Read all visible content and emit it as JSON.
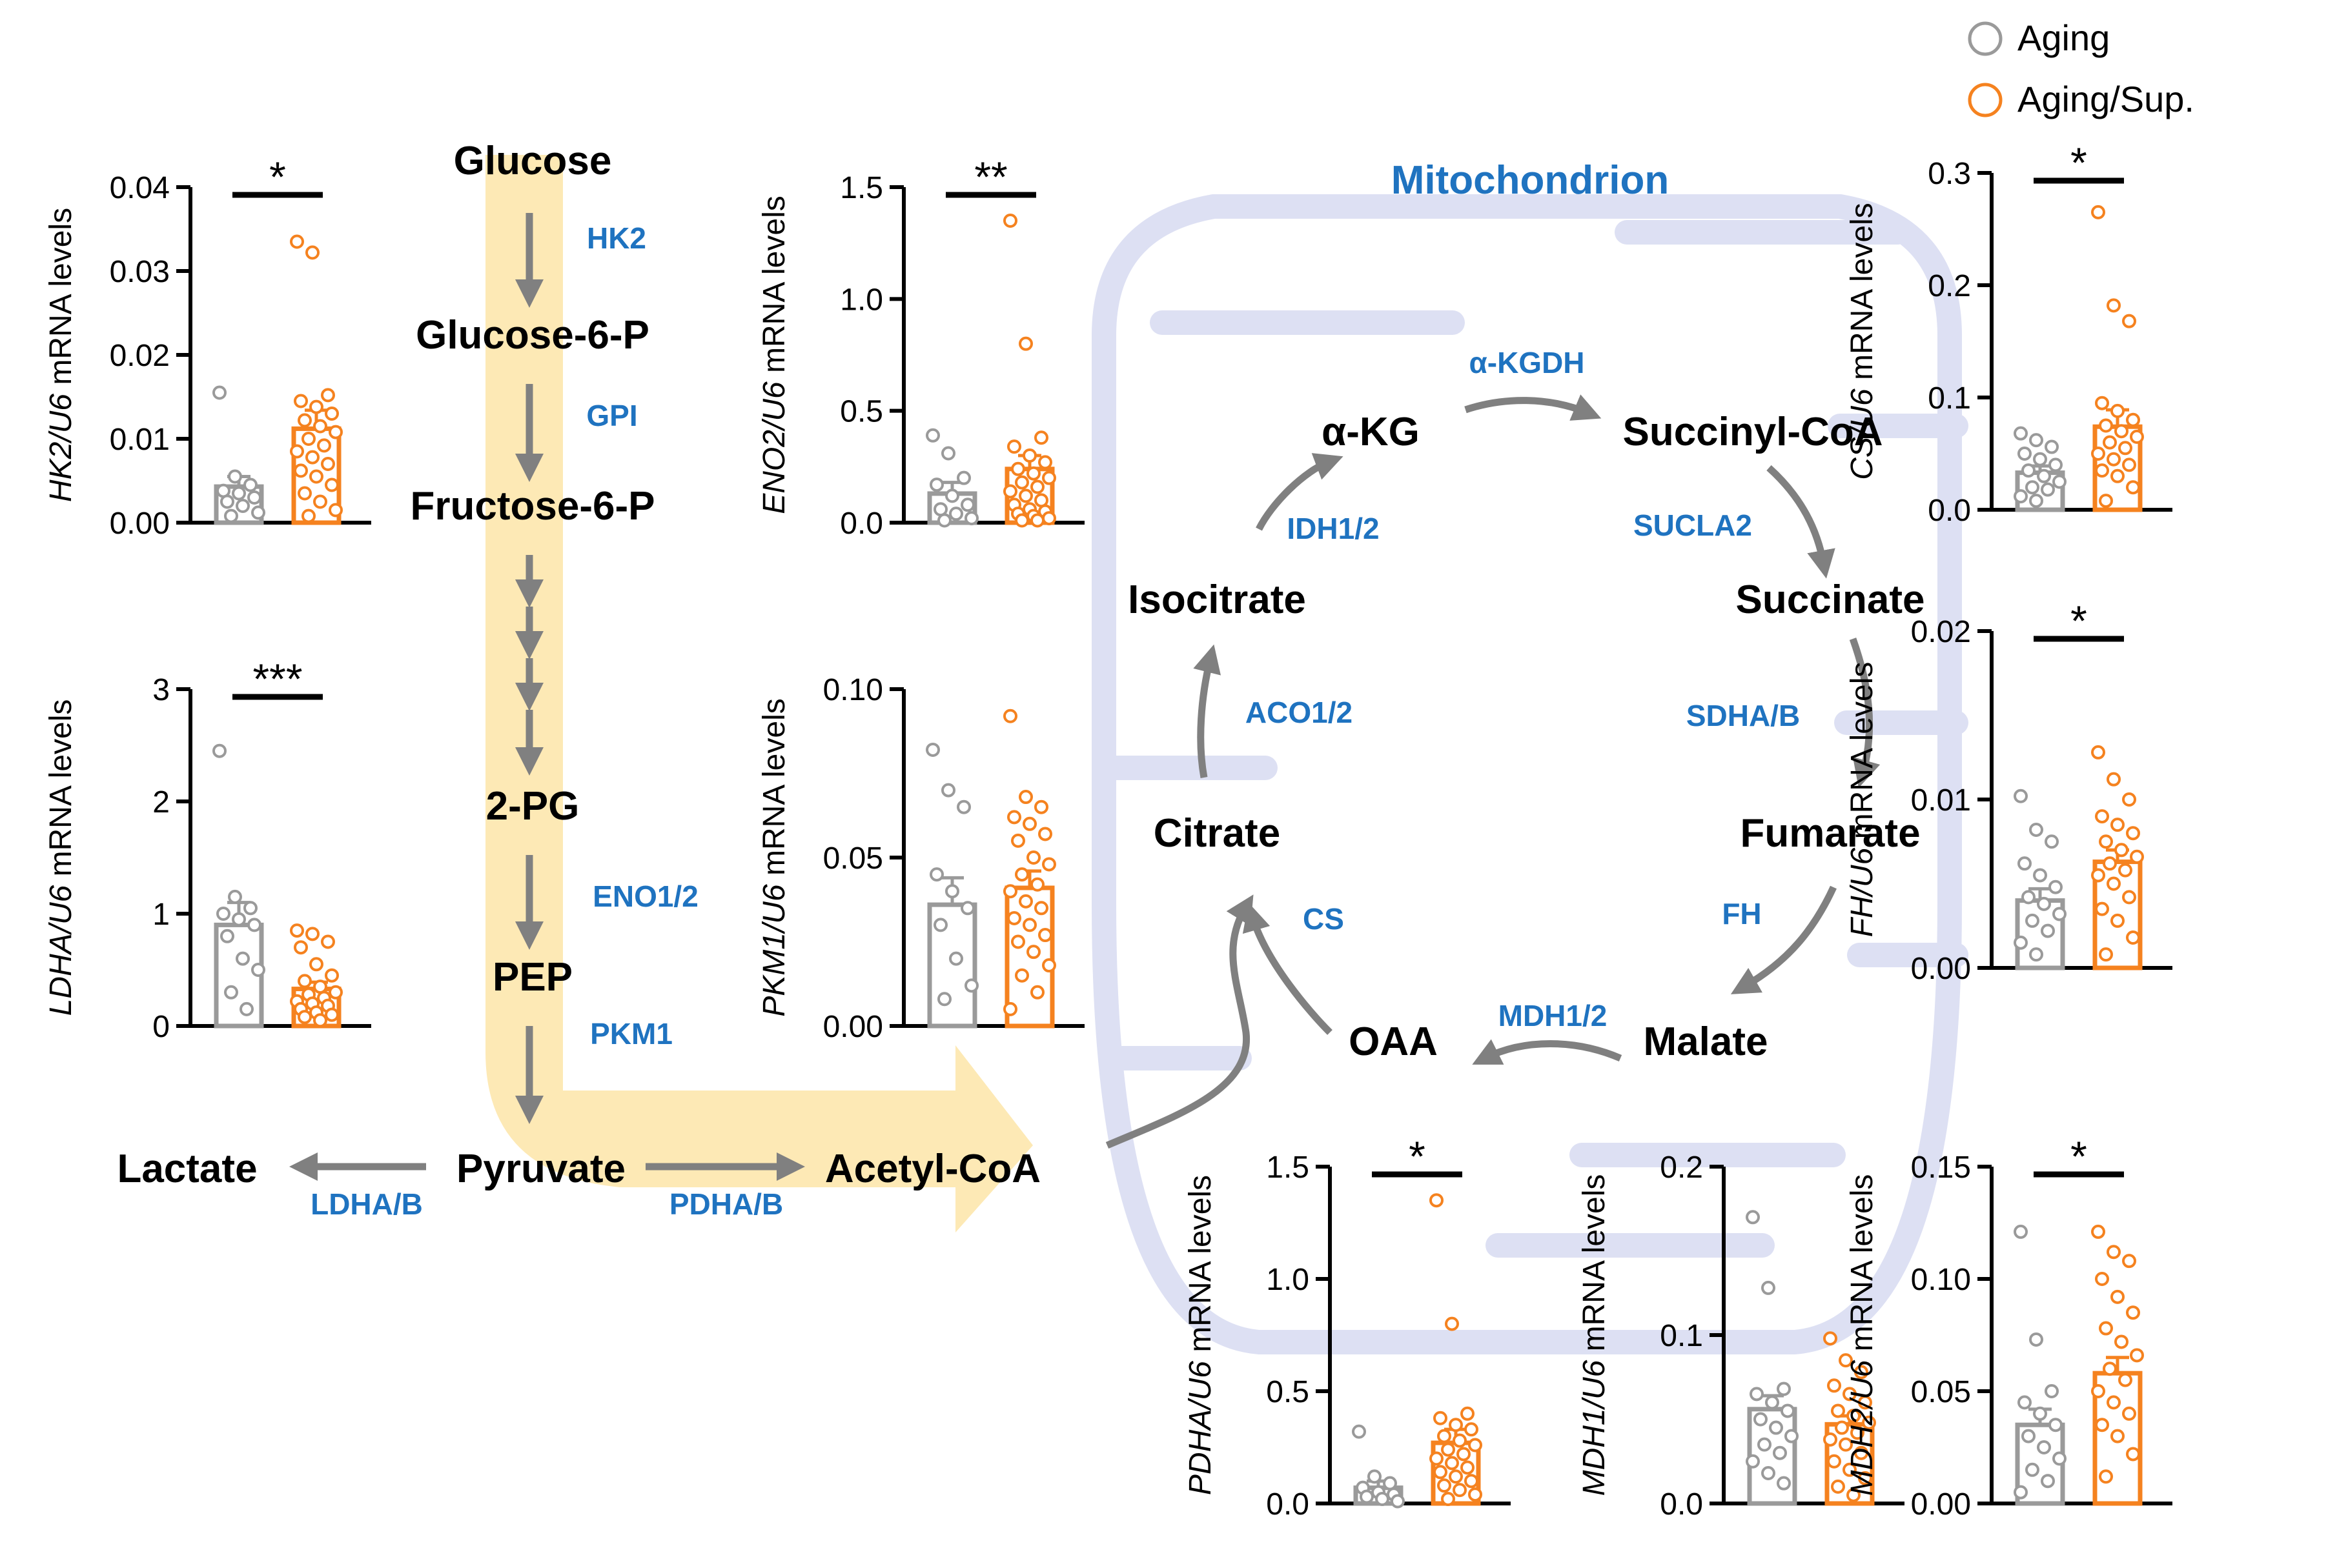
{
  "legend": {
    "items": [
      {
        "label": "Aging",
        "color": "#9a9a9a"
      },
      {
        "label": "Aging/Sup.",
        "color": "#f5821f"
      }
    ]
  },
  "colors": {
    "aging": "#9a9a9a",
    "supplemented": "#f5821f",
    "enzyme": "#1f73c0",
    "arrow": "#808080",
    "glycolysis_band": "#fde9b5",
    "mitochondrion": "#dde0f3"
  },
  "pathway": {
    "mitochondrion_label": "Mitochondrion",
    "glycolysis": {
      "glucose": "Glucose",
      "hk2": "HK2",
      "g6p": "Glucose-6-P",
      "gpi": "GPI",
      "f6p": "Fructose-6-P",
      "pg2": "2-PG",
      "eno": "ENO1/2",
      "pep": "PEP",
      "pkm": "PKM1",
      "pyruvate": "Pyruvate",
      "lactate": "Lactate",
      "ldh": "LDHA/B",
      "pdh": "PDHA/B",
      "acetylcoa": "Acetyl-CoA"
    },
    "tca": {
      "akg": "α-KG",
      "akgdh": "α-KGDH",
      "succoa": "Succinyl-CoA",
      "sucla": "SUCLA2",
      "succinate": "Succinate",
      "sdh": "SDHA/B",
      "fumarate": "Fumarate",
      "fh": "FH",
      "malate": "Malate",
      "mdh": "MDH1/2",
      "oaa": "OAA",
      "cs": "CS",
      "citrate": "Citrate",
      "aco": "ACO1/2",
      "isocitrate": "Isocitrate",
      "idh": "IDH1/2"
    }
  },
  "chart_data": [
    {
      "id": "hk2",
      "type": "bar",
      "gene": "HK2",
      "ylabel_suffix": "/U6 mRNA levels",
      "ylim": [
        0,
        0.04
      ],
      "ticks": [
        0,
        0.01,
        0.02,
        0.03,
        0.04
      ],
      "tick_labels": [
        "0.00",
        "0.01",
        "0.02",
        "0.03",
        "0.04"
      ],
      "significance": "*",
      "series": [
        {
          "name": "Aging",
          "mean": 0.0043,
          "sem": 0.0012,
          "points": [
            0.0155,
            0.0055,
            0.0045,
            0.0038,
            0.0035,
            0.003,
            0.0025,
            0.002,
            0.0012,
            0.0008
          ]
        },
        {
          "name": "Aging/Sup.",
          "mean": 0.0112,
          "sem": 0.0022,
          "points": [
            0.0335,
            0.0322,
            0.0152,
            0.0145,
            0.0138,
            0.013,
            0.0122,
            0.0115,
            0.0108,
            0.01,
            0.0092,
            0.0085,
            0.0078,
            0.007,
            0.0062,
            0.0055,
            0.0045,
            0.0035,
            0.0025,
            0.0015,
            0.0008
          ]
        }
      ]
    },
    {
      "id": "eno2",
      "type": "bar",
      "gene": "ENO2",
      "ylabel_suffix": "/U6 mRNA levels",
      "ylim": [
        0,
        1.5
      ],
      "ticks": [
        0,
        0.5,
        1.0,
        1.5
      ],
      "tick_labels": [
        "0.0",
        "0.5",
        "1.0",
        "1.5"
      ],
      "significance": "**",
      "series": [
        {
          "name": "Aging",
          "mean": 0.13,
          "sem": 0.05,
          "points": [
            0.39,
            0.31,
            0.2,
            0.17,
            0.12,
            0.08,
            0.06,
            0.04,
            0.02,
            0.01
          ]
        },
        {
          "name": "Aging/Sup.",
          "mean": 0.24,
          "sem": 0.06,
          "points": [
            1.35,
            0.8,
            0.38,
            0.34,
            0.3,
            0.27,
            0.24,
            0.22,
            0.2,
            0.18,
            0.16,
            0.14,
            0.12,
            0.1,
            0.08,
            0.06,
            0.05,
            0.04,
            0.03,
            0.02,
            0.01,
            0.01
          ]
        }
      ]
    },
    {
      "id": "ldha",
      "type": "bar",
      "gene": "LDHA",
      "ylabel_suffix": "/U6 mRNA levels",
      "ylim": [
        0,
        3
      ],
      "ticks": [
        0,
        1,
        2,
        3
      ],
      "tick_labels": [
        "0",
        "1",
        "2",
        "3"
      ],
      "significance": "***",
      "series": [
        {
          "name": "Aging",
          "mean": 0.9,
          "sem": 0.2,
          "points": [
            2.45,
            1.15,
            1.05,
            1.0,
            0.95,
            0.9,
            0.8,
            0.6,
            0.5,
            0.3,
            0.15
          ]
        },
        {
          "name": "Aging/Sup.",
          "mean": 0.33,
          "sem": 0.06,
          "points": [
            0.85,
            0.82,
            0.75,
            0.7,
            0.55,
            0.45,
            0.4,
            0.35,
            0.3,
            0.28,
            0.25,
            0.22,
            0.2,
            0.18,
            0.15,
            0.12,
            0.1,
            0.08,
            0.05
          ]
        }
      ]
    },
    {
      "id": "pkm1",
      "type": "bar",
      "gene": "PKM1",
      "ylabel_suffix": "/U6 mRNA levels",
      "ylim": [
        0,
        0.1
      ],
      "ticks": [
        0,
        0.05,
        0.1
      ],
      "tick_labels": [
        "0.00",
        "0.05",
        "0.10"
      ],
      "significance": "",
      "series": [
        {
          "name": "Aging",
          "mean": 0.036,
          "sem": 0.008,
          "points": [
            0.082,
            0.07,
            0.065,
            0.045,
            0.04,
            0.035,
            0.03,
            0.02,
            0.012,
            0.008
          ]
        },
        {
          "name": "Aging/Sup.",
          "mean": 0.041,
          "sem": 0.005,
          "points": [
            0.092,
            0.068,
            0.065,
            0.062,
            0.06,
            0.057,
            0.055,
            0.05,
            0.048,
            0.045,
            0.042,
            0.04,
            0.037,
            0.035,
            0.032,
            0.03,
            0.027,
            0.025,
            0.022,
            0.018,
            0.015,
            0.01,
            0.005
          ]
        }
      ]
    },
    {
      "id": "cs",
      "type": "bar",
      "gene": "CS",
      "ylabel_suffix": "/U6 mRNA levels",
      "ylim": [
        0,
        0.3
      ],
      "ticks": [
        0,
        0.1,
        0.2,
        0.3
      ],
      "tick_labels": [
        "0.0",
        "0.1",
        "0.2",
        "0.3"
      ],
      "significance": "*",
      "series": [
        {
          "name": "Aging",
          "mean": 0.033,
          "sem": 0.006,
          "points": [
            0.068,
            0.062,
            0.056,
            0.05,
            0.045,
            0.04,
            0.035,
            0.03,
            0.025,
            0.02,
            0.018,
            0.012,
            0.008
          ]
        },
        {
          "name": "Aging/Sup.",
          "mean": 0.074,
          "sem": 0.015,
          "points": [
            0.265,
            0.182,
            0.168,
            0.095,
            0.088,
            0.08,
            0.075,
            0.07,
            0.065,
            0.06,
            0.055,
            0.05,
            0.045,
            0.04,
            0.035,
            0.03,
            0.02,
            0.008
          ]
        }
      ]
    },
    {
      "id": "fh",
      "type": "bar",
      "gene": "FH",
      "ylabel_suffix": "/U6 mRNA levels",
      "ylim": [
        0,
        0.02
      ],
      "ticks": [
        0,
        0.01,
        0.02
      ],
      "tick_labels": [
        "0.00",
        "0.01",
        "0.02"
      ],
      "significance": "*",
      "series": [
        {
          "name": "Aging",
          "mean": 0.004,
          "sem": 0.0007,
          "points": [
            0.0102,
            0.0082,
            0.0075,
            0.0062,
            0.0055,
            0.0048,
            0.0042,
            0.0038,
            0.0032,
            0.0028,
            0.0022,
            0.0015,
            0.0008
          ]
        },
        {
          "name": "Aging/Sup.",
          "mean": 0.0063,
          "sem": 0.0007,
          "points": [
            0.0128,
            0.0112,
            0.01,
            0.009,
            0.0085,
            0.008,
            0.0075,
            0.007,
            0.0066,
            0.0062,
            0.0058,
            0.0055,
            0.005,
            0.0042,
            0.0035,
            0.0028,
            0.0018,
            0.0008
          ]
        }
      ]
    },
    {
      "id": "pdha",
      "type": "bar",
      "gene": "PDHA",
      "ylabel_suffix": "/U6 mRNA levels",
      "ylim": [
        0,
        1.5
      ],
      "ticks": [
        0,
        0.5,
        1.0,
        1.5
      ],
      "tick_labels": [
        "0.0",
        "0.5",
        "1.0",
        "1.5"
      ],
      "significance": "*",
      "series": [
        {
          "name": "Aging",
          "mean": 0.07,
          "sem": 0.03,
          "points": [
            0.32,
            0.12,
            0.09,
            0.07,
            0.05,
            0.04,
            0.03,
            0.02,
            0.01
          ]
        },
        {
          "name": "Aging/Sup.",
          "mean": 0.27,
          "sem": 0.06,
          "points": [
            1.35,
            0.8,
            0.4,
            0.38,
            0.35,
            0.33,
            0.3,
            0.28,
            0.26,
            0.24,
            0.22,
            0.2,
            0.18,
            0.16,
            0.14,
            0.12,
            0.1,
            0.08,
            0.06,
            0.04,
            0.02
          ]
        }
      ]
    },
    {
      "id": "mdh1",
      "type": "bar",
      "gene": "MDH1",
      "ylabel_suffix": "/U6 mRNA levels",
      "ylim": [
        0,
        0.2
      ],
      "ticks": [
        0,
        0.1,
        0.2
      ],
      "tick_labels": [
        "0.0",
        "0.1",
        "0.2"
      ],
      "significance": "",
      "series": [
        {
          "name": "Aging",
          "mean": 0.056,
          "sem": 0.008,
          "points": [
            0.17,
            0.128,
            0.068,
            0.065,
            0.06,
            0.055,
            0.05,
            0.045,
            0.04,
            0.035,
            0.03,
            0.025,
            0.018,
            0.012
          ]
        },
        {
          "name": "Aging/Sup.",
          "mean": 0.047,
          "sem": 0.005,
          "points": [
            0.098,
            0.085,
            0.078,
            0.07,
            0.065,
            0.06,
            0.055,
            0.052,
            0.048,
            0.045,
            0.042,
            0.038,
            0.035,
            0.03,
            0.025,
            0.02,
            0.015,
            0.01,
            0.005
          ]
        }
      ]
    },
    {
      "id": "mdh2",
      "type": "bar",
      "gene": "MDH2",
      "ylabel_suffix": "/U6 mRNA levels",
      "ylim": [
        0,
        0.15
      ],
      "ticks": [
        0,
        0.05,
        0.1,
        0.15
      ],
      "tick_labels": [
        "0.00",
        "0.05",
        "0.10",
        "0.15"
      ],
      "significance": "*",
      "series": [
        {
          "name": "Aging",
          "mean": 0.035,
          "sem": 0.007,
          "points": [
            0.121,
            0.073,
            0.05,
            0.045,
            0.04,
            0.035,
            0.03,
            0.025,
            0.02,
            0.015,
            0.01,
            0.005
          ]
        },
        {
          "name": "Aging/Sup.",
          "mean": 0.058,
          "sem": 0.007,
          "points": [
            0.121,
            0.112,
            0.108,
            0.1,
            0.092,
            0.085,
            0.078,
            0.072,
            0.066,
            0.06,
            0.055,
            0.05,
            0.045,
            0.04,
            0.035,
            0.03,
            0.022,
            0.012
          ]
        }
      ]
    }
  ]
}
